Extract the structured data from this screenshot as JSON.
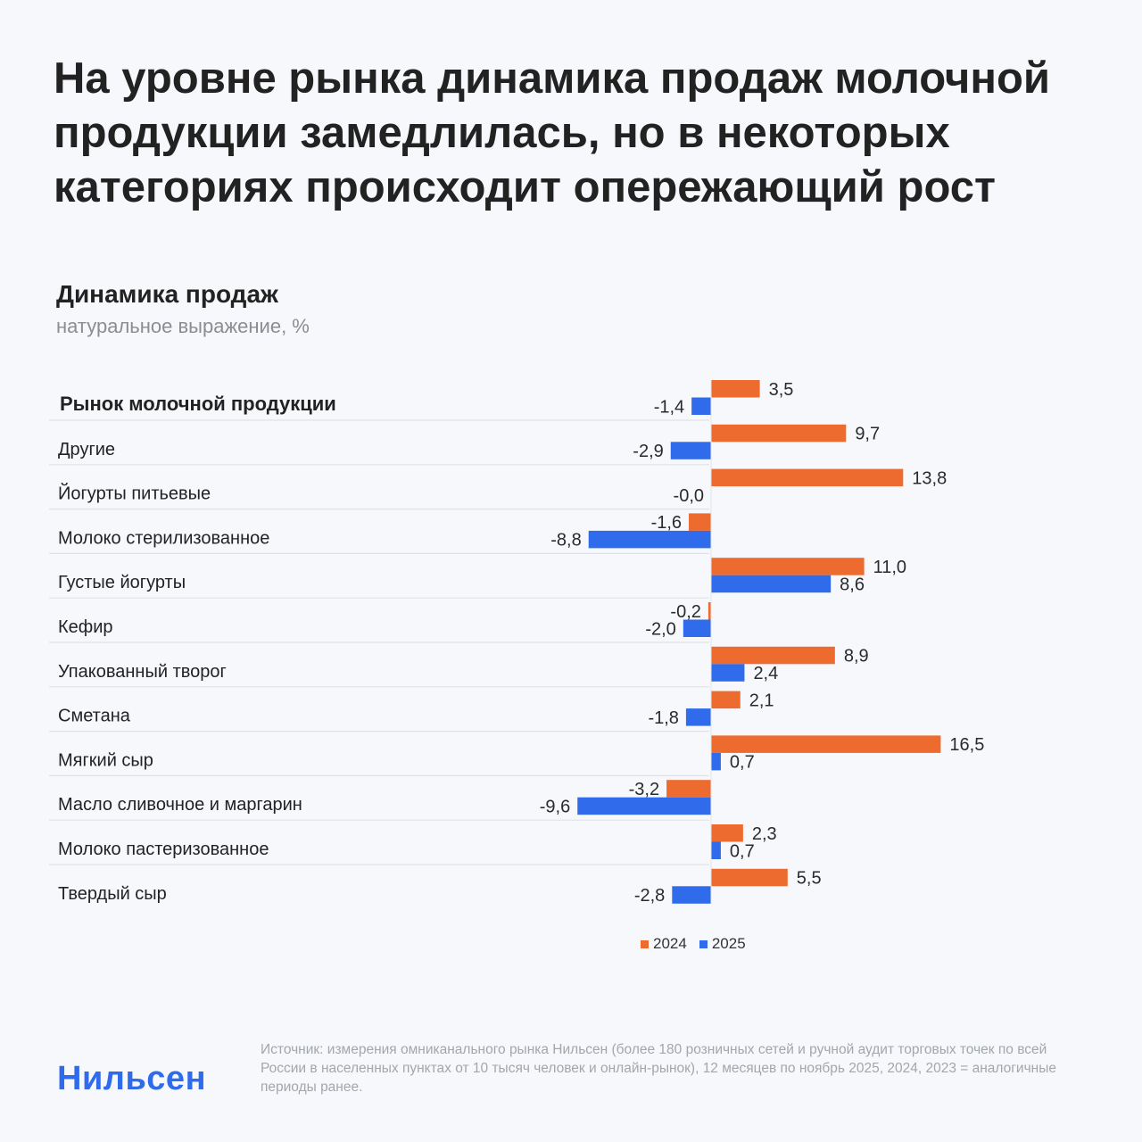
{
  "title": "На уровне рынка динамика продаж молочной продукции замедлилась, но в некоторых категориях происходит опережающий рост",
  "logo": "Нильсен",
  "source": "Источник: измерения омниканального рынка Нильсен (более 180 розничных сетей и ручной аудит торговых точек по всей России в населенных пунктах от 10 тысяч человек и онлайн-рынок), 12 месяцев по ноябрь 2025, 2024, 2023 = аналогичные периоды ранее.",
  "chart_data": {
    "type": "bar",
    "orientation": "horizontal",
    "title": "Динамика продаж",
    "subtitle": "натуральное выражение, %",
    "legend_placement": "bottom",
    "grid": false,
    "categories": [
      "Рынок молочной продукции",
      "Другие",
      "Йогурты питьевые",
      "Молоко стерилизованное",
      "Густые йогурты",
      "Кефир",
      "Упакованный творог",
      "Сметана",
      "Мягкий сыр",
      "Масло сливочное и маргарин",
      "Молоко пастеризованное",
      "Твердый сыр"
    ],
    "series": [
      {
        "name": "2024",
        "color": "#ee6b2f",
        "values": [
          3.5,
          9.7,
          13.8,
          -1.6,
          11.0,
          -0.2,
          8.9,
          2.1,
          16.5,
          -3.2,
          2.3,
          5.5
        ],
        "labels": [
          "3,5",
          "9,7",
          "13,8",
          "-1,6",
          "11,0",
          "-0,2",
          "8,9",
          "2,1",
          "16,5",
          "-3,2",
          "2,3",
          "5,5"
        ]
      },
      {
        "name": "2025",
        "color": "#2f6bea",
        "values": [
          -1.4,
          -2.9,
          -0.0,
          -8.8,
          8.6,
          -2.0,
          2.4,
          -1.8,
          0.7,
          -9.6,
          0.7,
          -2.8
        ],
        "labels": [
          "-1,4",
          "-2,9",
          "-0,0",
          "-8,8",
          "8,6",
          "-2,0",
          "2,4",
          "-1,8",
          "0,7",
          "-9,6",
          "0,7",
          "-2,8"
        ]
      }
    ]
  }
}
